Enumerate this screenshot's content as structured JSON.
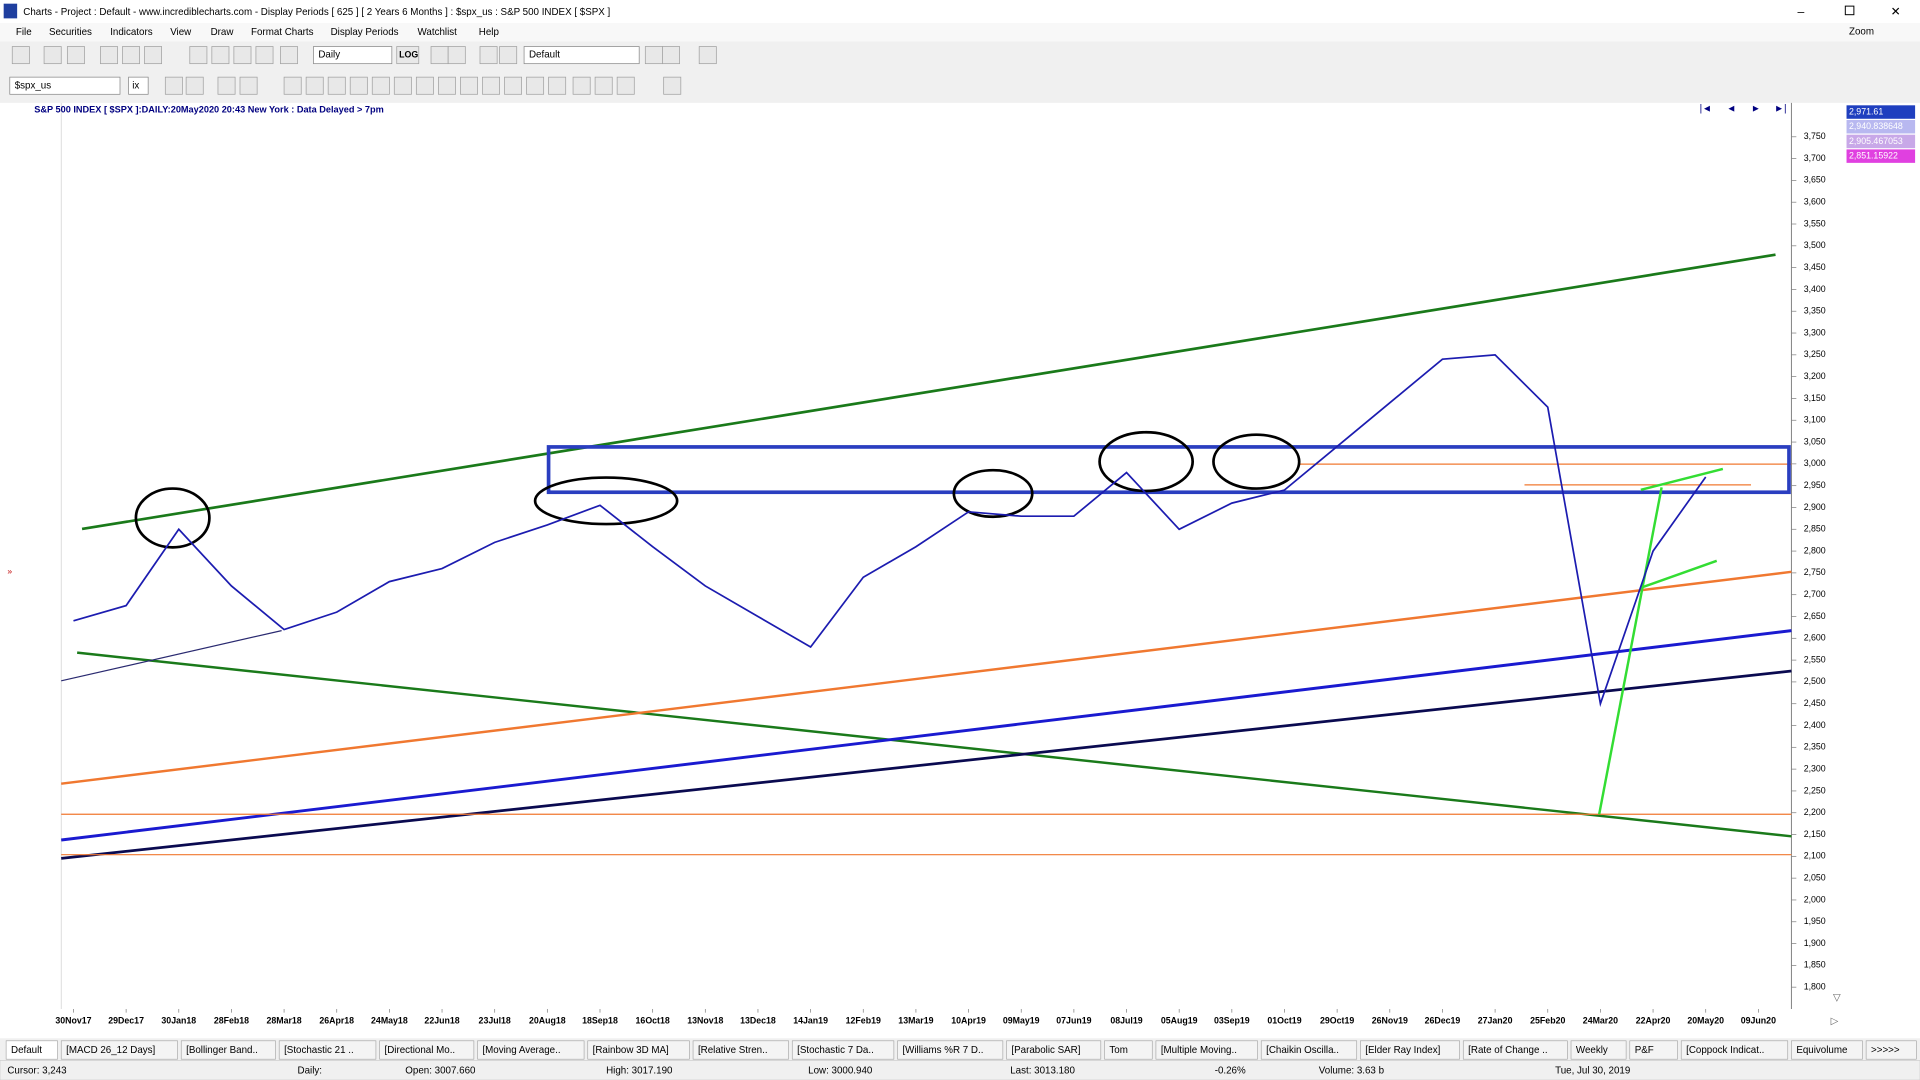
{
  "window": {
    "title": "Charts - Project : Default - www.incrediblecharts.com - Display Periods  [ 625 ]  [ 2 Years 6 Months ] : $spx_us : S&P 500 INDEX  [ $SPX ]",
    "zoom": "Zoom"
  },
  "menu": [
    "File",
    "Securities",
    "Indicators",
    "View",
    "Draw",
    "Format Charts",
    "Display Periods",
    "Watchlist",
    "Help"
  ],
  "toolbar": {
    "period": "Daily",
    "log": "LOG",
    "template": "Default",
    "security": "$spx_us",
    "exchange": "ix"
  },
  "price_labels": [
    "2,971.61",
    "2,940.838648",
    "2,905.467053",
    "2,851.15922"
  ],
  "tabs": [
    "Default",
    "[MACD 26_12 Days]",
    "[Bollinger Band..",
    "[Stochastic 21 ..",
    "[Directional Mo..",
    "[Moving Average..",
    "[Rainbow 3D MA]",
    "[Relative Stren..",
    "[Stochastic 7 Da..",
    "[Williams %R 7 D..",
    "[Parabolic SAR]",
    "Tom",
    "[Multiple Moving..",
    "[Chaikin Oscilla..",
    "[Elder Ray Index]",
    "[Rate of Change ..",
    "Weekly",
    "P&F",
    "[Coppock Indicat..",
    "Equivolume",
    ">>>>>"
  ],
  "status": [
    "Cursor: 3,243",
    "Daily:",
    "Open: 3007.660",
    "High: 3017.190",
    "Low: 3000.940",
    "Last: 3013.180",
    "-0.26%",
    "Volume: 3.63 b",
    "Tue, Jul 30, 2019"
  ],
  "chart_data": {
    "type": "line",
    "title": "S&P 500 INDEX [ $SPX ]:DAILY:20May2020 20:43 New York : Data Delayed > 7pm",
    "categories": [
      "30Nov17",
      "29Dec17",
      "30Jan18",
      "28Feb18",
      "28Mar18",
      "26Apr18",
      "24May18",
      "22Jun18",
      "23Jul18",
      "20Aug18",
      "18Sep18",
      "16Oct18",
      "13Nov18",
      "13Dec18",
      "14Jan19",
      "12Feb19",
      "13Mar19",
      "10Apr19",
      "09May19",
      "07Jun19",
      "08Jul19",
      "05Aug19",
      "03Sep19",
      "01Oct19",
      "29Oct19",
      "26Nov19",
      "26Dec19",
      "27Jan20",
      "25Feb20",
      "24Mar20",
      "22Apr20",
      "20May20",
      "09Jun20"
    ],
    "values": [
      2640,
      2675,
      2850,
      2720,
      2620,
      2660,
      2730,
      2760,
      2820,
      2860,
      2905,
      2810,
      2720,
      2650,
      2580,
      2740,
      2810,
      2890,
      2880,
      2880,
      2980,
      2850,
      2910,
      2940,
      3040,
      3140,
      3240,
      3250,
      3130,
      2450,
      2800,
      2970,
      null
    ],
    "color": "#1c1cb0",
    "ylim": [
      1750,
      3825
    ],
    "yticks": [
      {
        "value": 1800,
        "label": "1,800"
      },
      {
        "value": 1850,
        "label": "1,850"
      },
      {
        "value": 1900,
        "label": "1,900"
      },
      {
        "value": 1950,
        "label": "1,950"
      },
      {
        "value": 2000,
        "label": "2,000"
      },
      {
        "value": 2050,
        "label": "2,050"
      },
      {
        "value": 2100,
        "label": "2,100"
      },
      {
        "value": 2150,
        "label": "2,150"
      },
      {
        "value": 2200,
        "label": "2,200"
      },
      {
        "value": 2250,
        "label": "2,250"
      },
      {
        "value": 2300,
        "label": "2,300"
      },
      {
        "value": 2350,
        "label": "2,350"
      },
      {
        "value": 2400,
        "label": "2,400"
      },
      {
        "value": 2450,
        "label": "2,450"
      },
      {
        "value": 2500,
        "label": "2,500"
      },
      {
        "value": 2550,
        "label": "2,550"
      },
      {
        "value": 2600,
        "label": "2,600"
      },
      {
        "value": 2650,
        "label": "2,650"
      },
      {
        "value": 2700,
        "label": "2,700"
      },
      {
        "value": 2750,
        "label": "2,750"
      },
      {
        "value": 2800,
        "label": "2,800"
      },
      {
        "value": 2850,
        "label": "2,850"
      },
      {
        "value": 2900,
        "label": "2,900"
      },
      {
        "value": 2950,
        "label": "2,950"
      },
      {
        "value": 3000,
        "label": "3,000"
      },
      {
        "value": 3050,
        "label": "3,050"
      },
      {
        "value": 3100,
        "label": "3,100"
      },
      {
        "value": 3150,
        "label": "3,150"
      },
      {
        "value": 3200,
        "label": "3,200"
      },
      {
        "value": 3250,
        "label": "3,250"
      },
      {
        "value": 3300,
        "label": "3,300"
      },
      {
        "value": 3350,
        "label": "3,350"
      },
      {
        "value": 3400,
        "label": "3,400"
      },
      {
        "value": 3450,
        "label": "3,450"
      },
      {
        "value": 3500,
        "label": "3,500"
      },
      {
        "value": 3550,
        "label": "3,550"
      },
      {
        "value": 3600,
        "label": "3,600"
      },
      {
        "value": 3650,
        "label": "3,650"
      },
      {
        "value": 3700,
        "label": "3,700"
      },
      {
        "value": 3750,
        "label": "3,750"
      }
    ],
    "grid": false
  }
}
